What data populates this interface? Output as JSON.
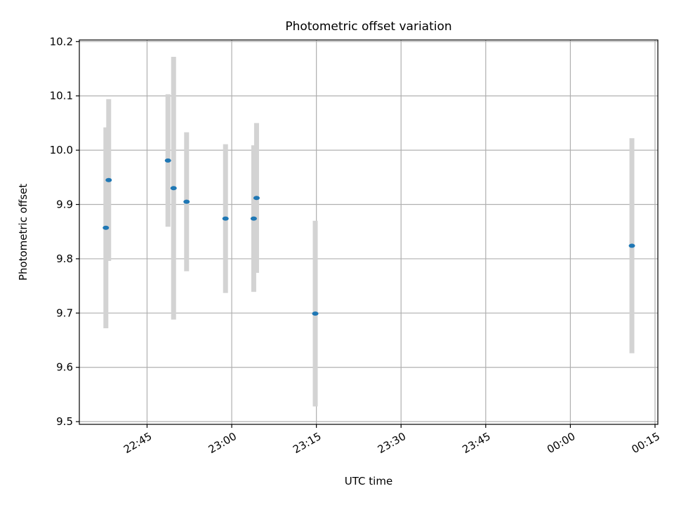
{
  "chart_data": {
    "type": "scatter",
    "title": "Photometric offset variation",
    "xlabel": "UTC time",
    "ylabel": "Photometric offset",
    "x_tick_labels": [
      "22:45",
      "23:00",
      "23:15",
      "23:30",
      "23:45",
      "00:00",
      "00:15"
    ],
    "y_tick_labels": [
      "9.5",
      "9.6",
      "9.7",
      "9.8",
      "9.9",
      "10.0",
      "10.1",
      "10.2"
    ],
    "y_ticks": [
      9.5,
      9.6,
      9.7,
      9.8,
      9.9,
      10.0,
      10.1,
      10.2
    ],
    "ylim": [
      9.495,
      10.203
    ],
    "grid": true,
    "colors": {
      "marker": "#1f77b4",
      "errorbar": "#d3d3d3",
      "grid": "#b0b0b0"
    },
    "points": [
      {
        "time": "22:37:42",
        "y": 9.857,
        "yerr": 0.185
      },
      {
        "time": "22:38:12",
        "y": 9.945,
        "yerr": 0.149
      },
      {
        "time": "22:48:42",
        "y": 9.981,
        "yerr": 0.122
      },
      {
        "time": "22:49:42",
        "y": 9.93,
        "yerr": 0.242
      },
      {
        "time": "22:52:00",
        "y": 9.905,
        "yerr": 0.128
      },
      {
        "time": "22:58:54",
        "y": 9.874,
        "yerr": 0.137
      },
      {
        "time": "23:03:54",
        "y": 9.874,
        "yerr": 0.135
      },
      {
        "time": "23:04:24",
        "y": 9.912,
        "yerr": 0.138
      },
      {
        "time": "23:14:48",
        "y": 9.699,
        "yerr": 0.171
      },
      {
        "time": "00:10:54",
        "y": 9.824,
        "yerr": 0.198
      }
    ]
  }
}
